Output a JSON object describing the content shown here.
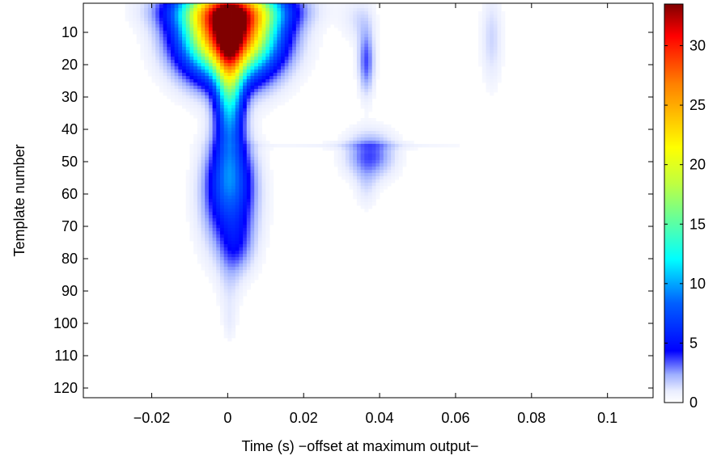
{
  "chart_data": {
    "type": "heatmap",
    "title": "",
    "xlabel": "Time (s) −offset at maximum output−",
    "ylabel": "Template number",
    "xlim": [
      -0.038,
      0.112
    ],
    "ylim": [
      123,
      1
    ],
    "xticks": [
      -0.02,
      0,
      0.02,
      0.04,
      0.06,
      0.08,
      0.1
    ],
    "xtick_labels": [
      "−0.02",
      "0",
      "0.02",
      "0.04",
      "0.06",
      "0.08",
      "0.1"
    ],
    "yticks": [
      10,
      20,
      30,
      40,
      50,
      60,
      70,
      80,
      90,
      100,
      110,
      120
    ],
    "ytick_labels": [
      "10",
      "20",
      "30",
      "40",
      "50",
      "60",
      "70",
      "80",
      "90",
      "100",
      "110",
      "120"
    ],
    "colorbar": {
      "min": 0,
      "max": 33.5,
      "ticks": [
        0,
        5,
        10,
        15,
        20,
        25,
        30
      ],
      "tick_labels": [
        "0",
        "5",
        "10",
        "15",
        "20",
        "25",
        "30"
      ],
      "colormap": "jet (white at zero)"
    },
    "blobs": [
      {
        "t": 0.0,
        "tw": 0.016,
        "n": 10,
        "nw": 9,
        "peak": 33
      },
      {
        "t": 0.0,
        "tw": 0.021,
        "n": 3,
        "nw": 4,
        "peak": 10
      },
      {
        "t": 0.0,
        "tw": 0.005,
        "n": 26,
        "nw": 14,
        "peak": 12
      },
      {
        "t": 0.0,
        "tw": 0.008,
        "n": 55,
        "nw": 9,
        "peak": 5
      },
      {
        "t": 0.0,
        "tw": 0.01,
        "n": 63,
        "nw": 12,
        "peak": 4
      },
      {
        "t": 0.002,
        "tw": 0.006,
        "n": 76,
        "nw": 6,
        "peak": 2
      },
      {
        "t": 0.0,
        "tw": 0.004,
        "n": 88,
        "nw": 10,
        "peak": 0.9
      },
      {
        "t": 0.0,
        "tw": 0.002,
        "n": 100,
        "nw": 4,
        "peak": 0.5
      },
      {
        "t": 0.036,
        "tw": 0.003,
        "n": 19,
        "nw": 7,
        "peak": 3.5
      },
      {
        "t": 0.034,
        "tw": 0.006,
        "n": 6,
        "nw": 5,
        "peak": 1.2
      },
      {
        "t": 0.037,
        "tw": 0.009,
        "n": 48,
        "nw": 5,
        "peak": 3.5
      },
      {
        "t": 0.036,
        "tw": 0.004,
        "n": 58,
        "nw": 5,
        "peak": 1
      },
      {
        "t": 0.069,
        "tw": 0.004,
        "n": 12,
        "nw": 10,
        "peak": 1.5
      },
      {
        "t": 0.035,
        "tw": 0.043,
        "n": 45,
        "nw": 0.8,
        "peak": 0.7
      }
    ]
  }
}
